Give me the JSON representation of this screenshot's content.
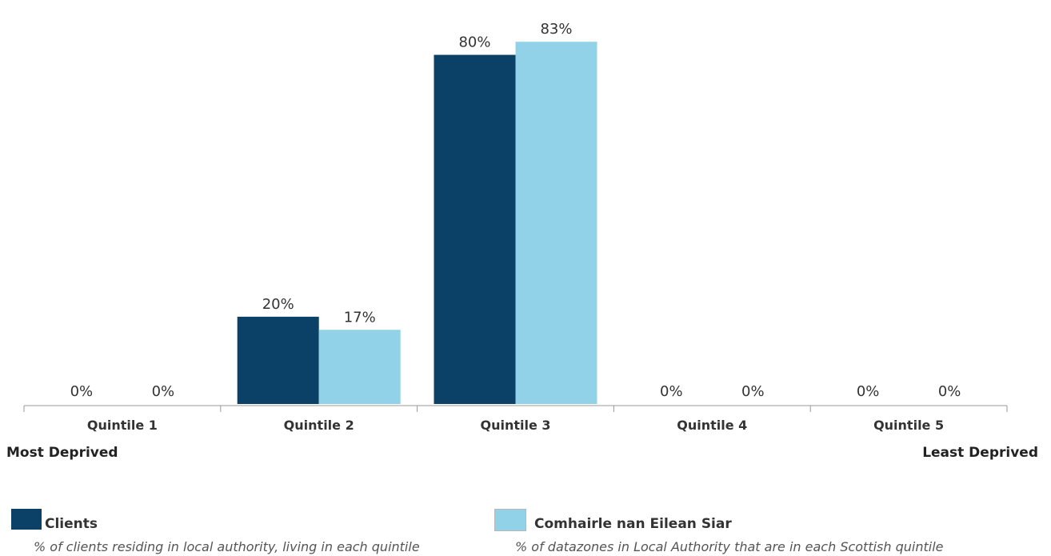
{
  "chart_data": {
    "type": "bar",
    "categories": [
      "Quintile 1",
      "Quintile 2",
      "Quintile 3",
      "Quintile 4",
      "Quintile 5"
    ],
    "series": [
      {
        "name": "Clients",
        "values": [
          0,
          20,
          80,
          0,
          0
        ],
        "labels": [
          "0%",
          "20%",
          "80%",
          "0%",
          "0%"
        ],
        "color": "#0b4166"
      },
      {
        "name": "Comhairle nan Eilean Siar",
        "values": [
          0,
          17,
          83,
          0,
          0
        ],
        "labels": [
          "0%",
          "17%",
          "83%",
          "0%",
          "0%"
        ],
        "color": "#92d2e8"
      }
    ],
    "ylim": [
      0,
      90
    ],
    "grid": false,
    "legend_placement": "bottom"
  },
  "axis_ends": {
    "left": "Most Deprived",
    "right": "Least Deprived"
  },
  "legend": [
    {
      "name": "Clients",
      "description": "% of clients residing in local authority, living in each quintile",
      "color": "#0b4166"
    },
    {
      "name": "Comhairle nan Eilean Siar",
      "description": "% of datazones in Local Authority that are in each Scottish quintile",
      "color": "#92d2e8"
    }
  ]
}
